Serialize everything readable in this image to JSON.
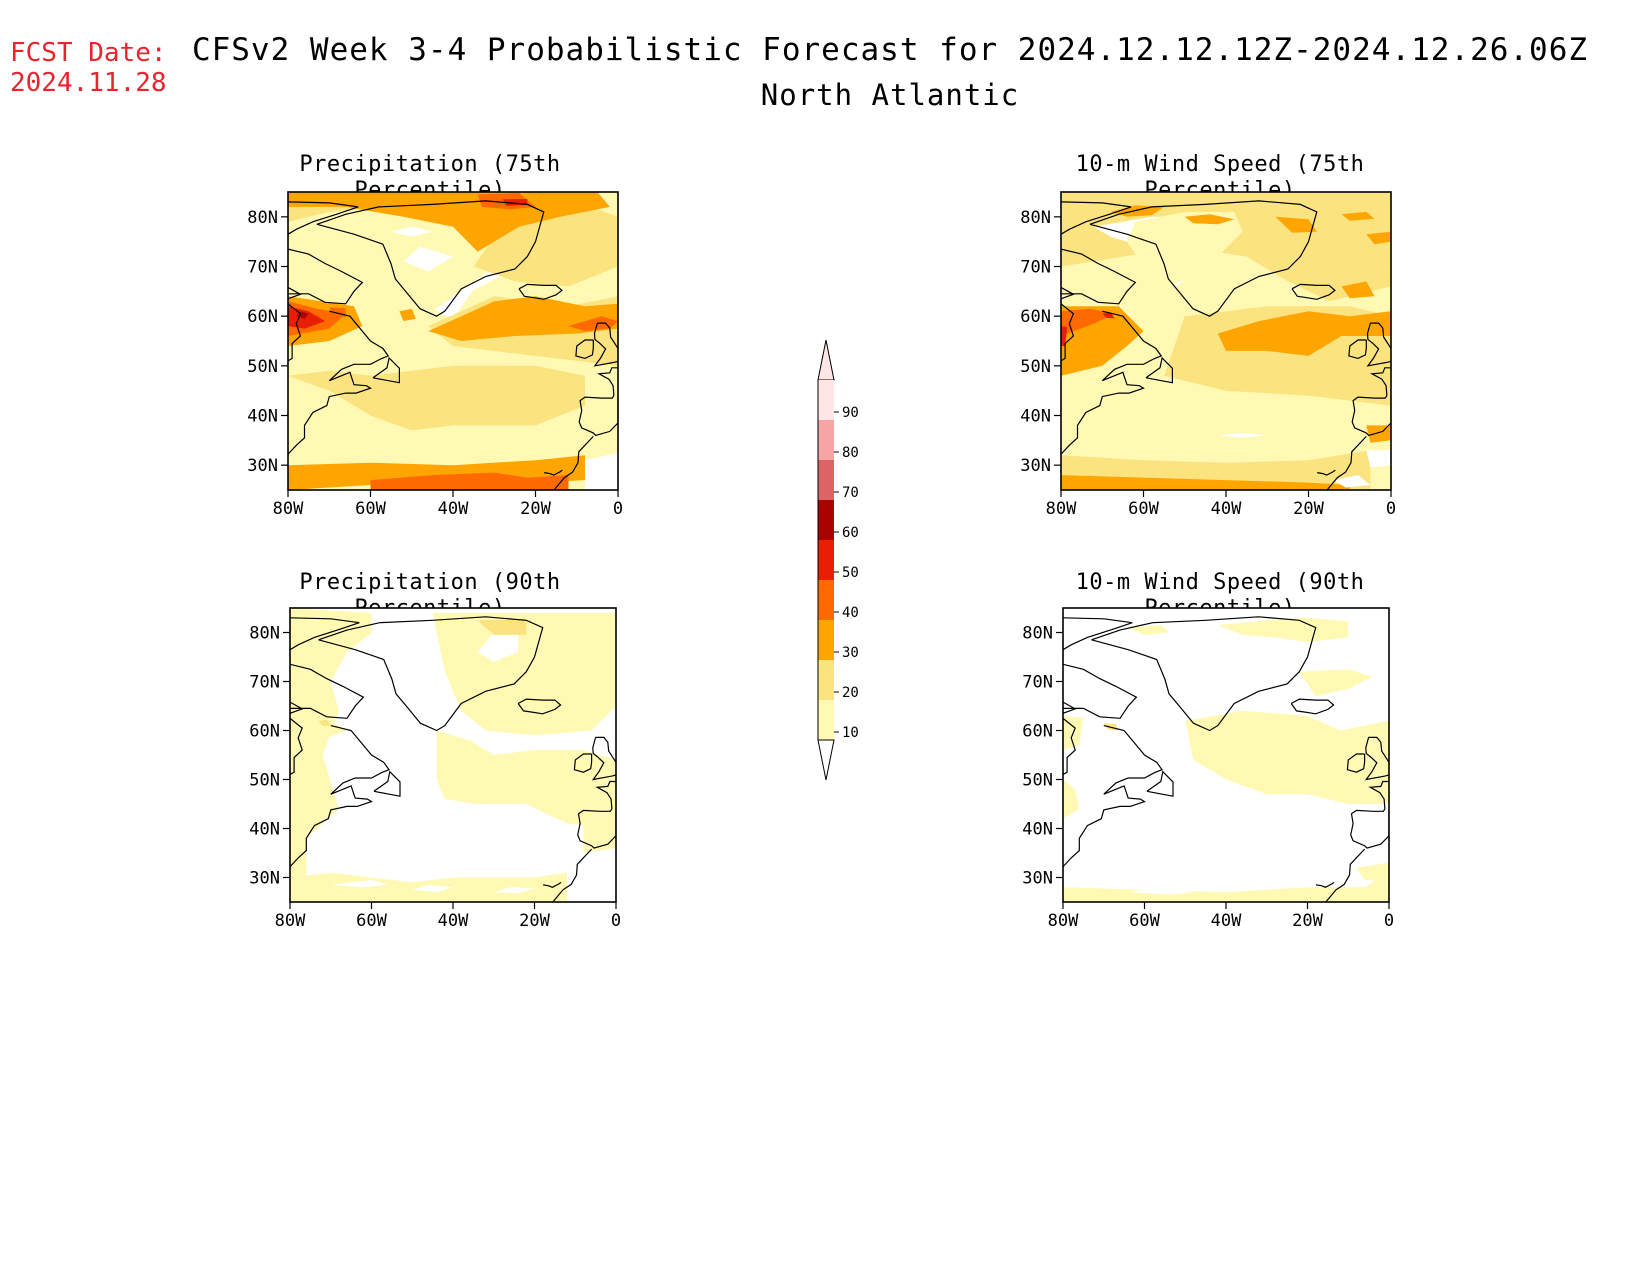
{
  "header": {
    "fcst_label": "FCST Date:",
    "fcst_date": "2024.11.28",
    "title": "CFSv2 Week 3-4 Probabilistic Forecast for 2024.12.12.12Z-2024.12.26.06Z",
    "region": "North Atlantic"
  },
  "axes": {
    "lat_ticks": [
      "30N",
      "40N",
      "50N",
      "60N",
      "70N",
      "80N"
    ],
    "lon_ticks": [
      "80W",
      "60W",
      "40W",
      "20W",
      "0"
    ],
    "lat_values": [
      30,
      40,
      50,
      60,
      70,
      80
    ],
    "lon_values": [
      -80,
      -60,
      -40,
      -20,
      0
    ],
    "lat_range": [
      25,
      85
    ],
    "lon_range": [
      -80,
      0
    ]
  },
  "panels": [
    {
      "title": "Precipitation (75th Percentile)",
      "variable": "precipitation",
      "percentile": 75
    },
    {
      "title": "10-m Wind Speed (75th Percentile)",
      "variable": "wind_speed_10m",
      "percentile": 75
    },
    {
      "title": "Precipitation (90th Percentile)",
      "variable": "precipitation",
      "percentile": 90
    },
    {
      "title": "10-m Wind Speed (90th Percentile)",
      "variable": "wind_speed_10m",
      "percentile": 90
    }
  ],
  "colorbar": {
    "labels": [
      "10",
      "20",
      "30",
      "40",
      "50",
      "60",
      "70",
      "80",
      "90"
    ],
    "levels": [
      10,
      20,
      30,
      40,
      50,
      60,
      70,
      80,
      90
    ],
    "colors": [
      "#fff9b4",
      "#fbe37f",
      "#ffa500",
      "#ff6a00",
      "#e81e05",
      "#a80500",
      "#dc6464",
      "#f5a5a5",
      "#ffe6e6"
    ]
  }
}
